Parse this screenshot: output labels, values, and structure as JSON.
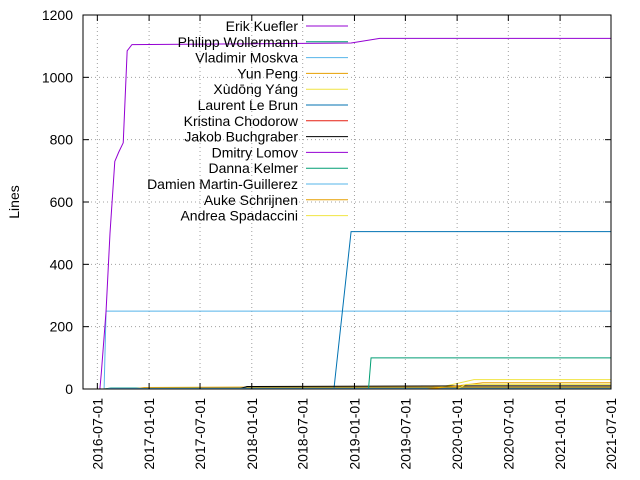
{
  "chart_data": {
    "type": "line",
    "title": "",
    "xlabel": "",
    "ylabel": "Lines",
    "x_ticks": [
      "2016-07-01",
      "2017-01-01",
      "2017-07-01",
      "2018-01-01",
      "2018-07-01",
      "2019-01-01",
      "2019-07-01",
      "2020-01-01",
      "2020-07-01",
      "2021-01-01",
      "2021-07-01"
    ],
    "y_ticks": [
      "0",
      "200",
      "400",
      "600",
      "800",
      "1000",
      "1200"
    ],
    "xlim": [
      "2016-05-11",
      "2021-07-01"
    ],
    "ylim": [
      0,
      1200
    ],
    "grid": true,
    "legend_position": "top-right",
    "series": [
      {
        "name": "Erik Kuefler",
        "color": "#9400d3",
        "points": [
          [
            "2016-05-11",
            0
          ],
          [
            "2016-07-25",
            0
          ],
          [
            "2016-08-18",
            1
          ],
          [
            "2021-07-01",
            1
          ]
        ]
      },
      {
        "name": "Philipp Wollermann",
        "color": "#009e73",
        "points": [
          [
            "2016-05-11",
            0
          ],
          [
            "2016-07-25",
            0
          ],
          [
            "2016-08-18",
            3
          ],
          [
            "2021-07-01",
            3
          ]
        ]
      },
      {
        "name": "Vladimir Moskva",
        "color": "#56b4e9",
        "points": [
          [
            "2016-05-11",
            0
          ],
          [
            "2016-07-25",
            0
          ],
          [
            "2016-08-01",
            250
          ],
          [
            "2021-07-01",
            250
          ]
        ]
      },
      {
        "name": "Yun Peng",
        "color": "#e69f00",
        "points": [
          [
            "2016-05-11",
            0
          ],
          [
            "2016-11-01",
            0
          ],
          [
            "2016-12-15",
            5
          ],
          [
            "2017-11-15",
            6
          ],
          [
            "2021-07-01",
            6
          ]
        ]
      },
      {
        "name": "Xùdōng Yáng",
        "color": "#f0e442",
        "points": [
          [
            "2016-05-11",
            0
          ],
          [
            "2019-10-15",
            2
          ],
          [
            "2020-03-01",
            30
          ],
          [
            "2021-07-01",
            30
          ]
        ]
      },
      {
        "name": "Laurent Le Brun",
        "color": "#0072b2",
        "points": [
          [
            "2016-05-11",
            0
          ],
          [
            "2018-10-20",
            0
          ],
          [
            "2018-12-20",
            505
          ],
          [
            "2021-07-01",
            505
          ]
        ]
      },
      {
        "name": "Kristina Chodorow",
        "color": "#e51e10",
        "points": [
          [
            "2016-05-11",
            0
          ],
          [
            "2017-06-15",
            0
          ],
          [
            "2017-07-01",
            2
          ],
          [
            "2021-07-01",
            2
          ]
        ]
      },
      {
        "name": "Jakob Buchgraber",
        "color": "#000000",
        "points": [
          [
            "2016-05-11",
            0
          ],
          [
            "2017-11-15",
            0
          ],
          [
            "2017-12-15",
            8
          ],
          [
            "2020-03-01",
            10
          ],
          [
            "2021-07-01",
            10
          ]
        ]
      },
      {
        "name": "Dmitry Lomov",
        "color": "#9400d3",
        "points": [
          [
            "2016-05-11",
            0
          ],
          [
            "2016-07-10",
            0
          ],
          [
            "2016-07-15",
            50
          ],
          [
            "2016-08-01",
            250
          ],
          [
            "2016-08-15",
            500
          ],
          [
            "2016-09-01",
            730
          ],
          [
            "2016-09-15",
            760
          ],
          [
            "2016-10-01",
            790
          ],
          [
            "2016-10-15",
            1085
          ],
          [
            "2016-11-01",
            1105
          ],
          [
            "2018-12-20",
            1110
          ],
          [
            "2019-04-01",
            1125
          ],
          [
            "2021-07-01",
            1125
          ]
        ]
      },
      {
        "name": "Danna Kelmer",
        "color": "#009e73",
        "points": [
          [
            "2016-05-11",
            0
          ],
          [
            "2019-02-20",
            0
          ],
          [
            "2019-03-01",
            100
          ],
          [
            "2021-07-01",
            100
          ]
        ]
      },
      {
        "name": "Damien Martin-Guillerez",
        "color": "#56b4e9",
        "points": [
          [
            "2016-05-11",
            0
          ],
          [
            "2016-08-01",
            0
          ],
          [
            "2016-08-15",
            2
          ],
          [
            "2021-07-01",
            2
          ]
        ]
      },
      {
        "name": "Auke Schrijnen",
        "color": "#e69f00",
        "points": [
          [
            "2016-05-11",
            0
          ],
          [
            "2019-09-15",
            0
          ],
          [
            "2019-12-15",
            8
          ],
          [
            "2020-04-01",
            20
          ],
          [
            "2021-07-01",
            20
          ]
        ]
      },
      {
        "name": "Andrea Spadaccini",
        "color": "#f0e442",
        "points": [
          [
            "2016-05-11",
            0
          ],
          [
            "2020-01-01",
            0
          ],
          [
            "2020-02-01",
            15
          ],
          [
            "2021-07-01",
            15
          ]
        ]
      }
    ]
  }
}
